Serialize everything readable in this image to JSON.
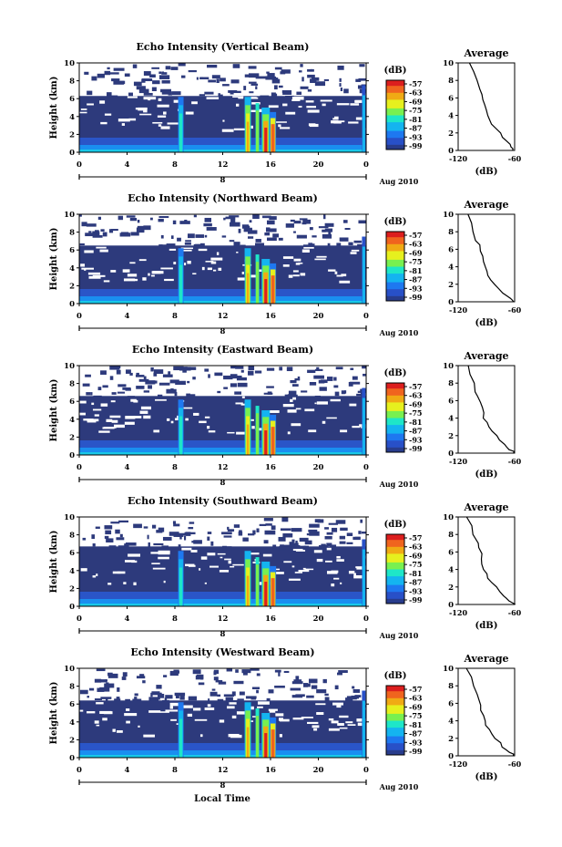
{
  "figure": {
    "xlabel": "Local Time",
    "date_label": "Aug 2010",
    "day_label": "8"
  },
  "chart_data": [
    {
      "type": "heatmap",
      "title": "Echo Intensity (Vertical Beam)",
      "xlabel": "",
      "ylabel": "Height (km)",
      "x_ticks": [
        "0",
        "4",
        "8",
        "12",
        "16",
        "20",
        "0"
      ],
      "y_ticks": [
        "0",
        "2",
        "4",
        "6",
        "8",
        "10"
      ],
      "xlim": [
        0,
        24
      ],
      "ylim": [
        0,
        10
      ],
      "colorbar": {
        "label": "(dB)",
        "ticks": [
          "-57",
          "-63",
          "-69",
          "-75",
          "-81",
          "-87",
          "-93",
          "-99"
        ]
      },
      "profile": {
        "title": "Average",
        "xlabel": "(dB)",
        "x_ticks": [
          "-120",
          "-60"
        ],
        "y_ticks": [
          "0",
          "2",
          "4",
          "6",
          "8",
          "10"
        ],
        "x": [
          -108,
          -104,
          -100,
          -96,
          -94,
          -94,
          -92,
          -90,
          -88,
          -86,
          -84,
          -80,
          -76,
          -72,
          -68,
          -66,
          -64,
          -62,
          -61
        ],
        "y": [
          10,
          9.0,
          8.0,
          7.0,
          6.4,
          5.8,
          5.2,
          4.6,
          4.0,
          3.5,
          3.0,
          2.5,
          2.0,
          1.5,
          1.0,
          0.7,
          0.4,
          0.2,
          0
        ]
      },
      "cloud_top_km": 6.3
    },
    {
      "type": "heatmap",
      "title": "Echo Intensity (Northward Beam)",
      "xlabel": "",
      "ylabel": "Height (km)",
      "x_ticks": [
        "0",
        "4",
        "8",
        "12",
        "16",
        "20",
        "0"
      ],
      "y_ticks": [
        "0",
        "2",
        "4",
        "6",
        "8",
        "10"
      ],
      "xlim": [
        0,
        24
      ],
      "ylim": [
        0,
        10
      ],
      "colorbar": {
        "label": "(dB)",
        "ticks": [
          "-57",
          "-63",
          "-69",
          "-75",
          "-81",
          "-87",
          "-93",
          "-99"
        ]
      },
      "profile": {
        "title": "Average",
        "xlabel": "(dB)",
        "x_ticks": [
          "-120",
          "-60"
        ],
        "y_ticks": [
          "0",
          "2",
          "4",
          "6",
          "8",
          "10"
        ],
        "x": [
          -110,
          -106,
          -104,
          -101,
          -98,
          -96,
          -95,
          -94,
          -92,
          -90,
          -88,
          -84,
          -80,
          -76,
          -72,
          -68,
          -65,
          -62,
          -60
        ],
        "y": [
          10,
          9.0,
          8.0,
          7.0,
          6.5,
          5.8,
          5.2,
          4.6,
          4.0,
          3.5,
          3.0,
          2.5,
          2.0,
          1.5,
          1.0,
          0.7,
          0.4,
          0.2,
          0
        ]
      },
      "cloud_top_km": 6.5
    },
    {
      "type": "heatmap",
      "title": "Echo Intensity (Eastward Beam)",
      "xlabel": "",
      "ylabel": "Height (km)",
      "x_ticks": [
        "0",
        "4",
        "8",
        "12",
        "16",
        "20",
        "0"
      ],
      "y_ticks": [
        "0",
        "2",
        "4",
        "6",
        "8",
        "10"
      ],
      "xlim": [
        0,
        24
      ],
      "ylim": [
        0,
        10
      ],
      "colorbar": {
        "label": "(dB)",
        "ticks": [
          "-57",
          "-63",
          "-69",
          "-75",
          "-81",
          "-87",
          "-93",
          "-99"
        ]
      },
      "profile": {
        "title": "Average",
        "xlabel": "(dB)",
        "x_ticks": [
          "-120",
          "-60"
        ],
        "y_ticks": [
          "0",
          "2",
          "4",
          "6",
          "8",
          "10"
        ],
        "x": [
          -110,
          -107,
          -104,
          -101,
          -98,
          -97,
          -95,
          -94,
          -92,
          -90,
          -88,
          -84,
          -80,
          -76,
          -72,
          -68,
          -65,
          -62,
          -60
        ],
        "y": [
          10,
          9.0,
          8.0,
          7.0,
          6.5,
          5.8,
          5.2,
          4.6,
          4.0,
          3.5,
          3.0,
          2.5,
          2.0,
          1.5,
          1.0,
          0.7,
          0.4,
          0.2,
          0
        ]
      },
      "cloud_top_km": 6.6
    },
    {
      "type": "heatmap",
      "title": "Echo Intensity (Southward Beam)",
      "xlabel": "",
      "ylabel": "Height (km)",
      "x_ticks": [
        "0",
        "4",
        "8",
        "12",
        "16",
        "20",
        "0"
      ],
      "y_ticks": [
        "0",
        "2",
        "4",
        "6",
        "8",
        "10"
      ],
      "xlim": [
        0,
        24
      ],
      "ylim": [
        0,
        10
      ],
      "colorbar": {
        "label": "(dB)",
        "ticks": [
          "-57",
          "-63",
          "-69",
          "-75",
          "-81",
          "-87",
          "-93",
          "-99"
        ]
      },
      "profile": {
        "title": "Average",
        "xlabel": "(dB)",
        "x_ticks": [
          "-120",
          "-60"
        ],
        "y_ticks": [
          "0",
          "2",
          "4",
          "6",
          "8",
          "10"
        ],
        "x": [
          -110,
          -106,
          -103,
          -100,
          -98,
          -96,
          -95,
          -94,
          -92,
          -90,
          -88,
          -84,
          -80,
          -76,
          -72,
          -68,
          -65,
          -62,
          -60
        ],
        "y": [
          10,
          9.0,
          8.0,
          7.0,
          6.5,
          5.8,
          5.2,
          4.6,
          4.0,
          3.5,
          3.0,
          2.5,
          2.0,
          1.5,
          1.0,
          0.7,
          0.4,
          0.2,
          0
        ]
      },
      "cloud_top_km": 6.7
    },
    {
      "type": "heatmap",
      "title": "Echo Intensity (Westward Beam)",
      "xlabel": "",
      "ylabel": "Height (km)",
      "x_ticks": [
        "0",
        "4",
        "8",
        "12",
        "16",
        "20",
        "0"
      ],
      "y_ticks": [
        "0",
        "2",
        "4",
        "6",
        "8",
        "10"
      ],
      "xlim": [
        0,
        24
      ],
      "ylim": [
        0,
        10
      ],
      "colorbar": {
        "label": "(dB)",
        "ticks": [
          "-57",
          "-63",
          "-69",
          "-75",
          "-81",
          "-87",
          "-93",
          "-99"
        ]
      },
      "profile": {
        "title": "Average",
        "xlabel": "(dB)",
        "x_ticks": [
          "-120",
          "-60"
        ],
        "y_ticks": [
          "0",
          "2",
          "4",
          "6",
          "8",
          "10"
        ],
        "x": [
          -110,
          -106,
          -103,
          -100,
          -98,
          -96,
          -95,
          -94,
          -92,
          -90,
          -88,
          -84,
          -80,
          -76,
          -72,
          -68,
          -65,
          -62,
          -60
        ],
        "y": [
          10,
          9.0,
          8.0,
          7.0,
          6.5,
          5.8,
          5.2,
          4.6,
          4.0,
          3.5,
          3.0,
          2.5,
          2.0,
          1.5,
          1.0,
          0.7,
          0.4,
          0.2,
          0
        ]
      },
      "cloud_top_km": 6.4
    }
  ]
}
